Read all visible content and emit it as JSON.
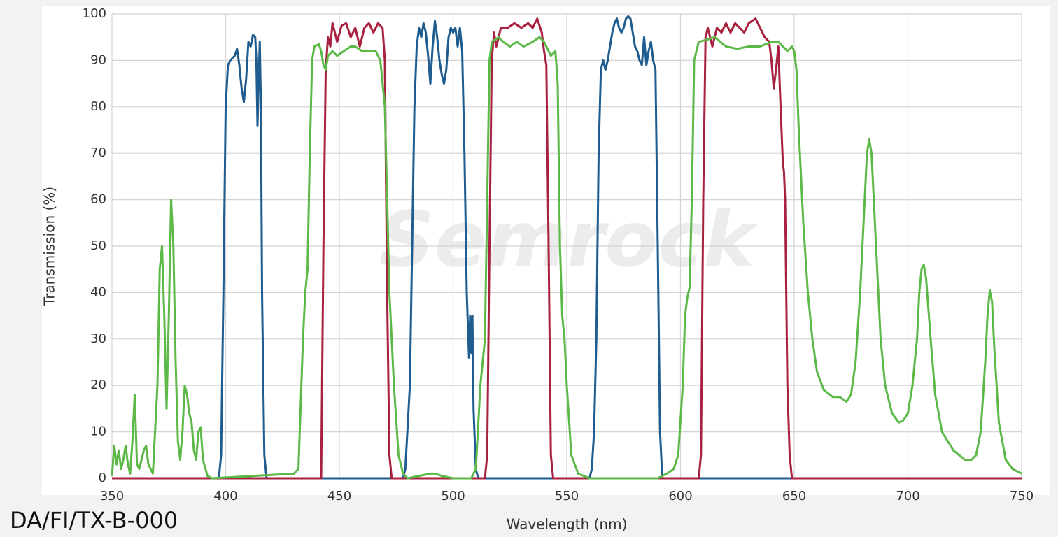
{
  "chart_data": {
    "type": "line",
    "xlabel": "Wavelength (nm)",
    "ylabel": "Transmission (%)",
    "annotation": "DA/FI/TX-B-000",
    "watermark": "Semrock",
    "xlim": [
      350,
      750
    ],
    "xticks": [
      350,
      400,
      450,
      500,
      550,
      600,
      650,
      700,
      750
    ],
    "ylim": [
      0,
      100
    ],
    "yticks": [
      0,
      10,
      20,
      30,
      40,
      50,
      60,
      70,
      80,
      90,
      100
    ],
    "grid": true,
    "series": [
      {
        "color": "#1f5c8f",
        "x": [
          350,
          397,
          398,
          399,
          400,
          401,
          402,
          404,
          405,
          406,
          407,
          408,
          409,
          410,
          411,
          412,
          413,
          413.5,
          414,
          414.5,
          415,
          415.5,
          416,
          417,
          418,
          478,
          479,
          481,
          482,
          483,
          484,
          485,
          486,
          487,
          488,
          489,
          490,
          491,
          492,
          493,
          494,
          495,
          496,
          497,
          498,
          499,
          500,
          501,
          502,
          503,
          504,
          505,
          506,
          507,
          507.5,
          508,
          508.5,
          509,
          510,
          511,
          560,
          561,
          562,
          563,
          564,
          565,
          566,
          567,
          568,
          569,
          570,
          571,
          572,
          573,
          574,
          575,
          576,
          577,
          578,
          579,
          580,
          581,
          582,
          583,
          584,
          585,
          586,
          587,
          588,
          589,
          590,
          591,
          592,
          750
        ],
        "values": [
          0,
          0,
          5,
          40,
          80,
          89,
          90,
          91,
          92.5,
          89,
          84,
          81,
          86,
          94,
          93,
          95.5,
          95,
          90,
          76,
          85,
          94,
          80,
          40,
          5,
          0,
          0,
          2,
          20,
          50,
          80,
          93,
          97,
          95,
          98,
          96,
          91,
          85,
          93,
          98.5,
          95,
          90,
          87,
          85,
          88,
          95,
          97,
          96,
          97,
          93,
          97,
          92,
          70,
          40,
          26,
          35,
          27,
          35,
          15,
          2,
          0,
          0,
          2,
          10,
          30,
          70,
          88,
          90,
          88,
          90,
          93,
          96,
          98,
          99,
          97,
          96,
          97,
          99,
          99.5,
          99,
          96,
          93,
          92,
          90,
          89,
          95,
          89,
          92,
          94,
          90,
          88,
          50,
          10,
          0,
          0
        ]
      },
      {
        "color": "#a8213f",
        "x": [
          350,
          442,
          443,
          444,
          445,
          446,
          447,
          449,
          451,
          453,
          455,
          457,
          459,
          461,
          463,
          465,
          467,
          469,
          470,
          471,
          472,
          473,
          514,
          515,
          516,
          517,
          518,
          519,
          521,
          524,
          527,
          530,
          533,
          535,
          537,
          539,
          540,
          541,
          542,
          543,
          544,
          608,
          609,
          610,
          611,
          612,
          614,
          616,
          618,
          620,
          622,
          624,
          626,
          628,
          630,
          633,
          635,
          637,
          639,
          640,
          641,
          642,
          643,
          644,
          645,
          645.5,
          646,
          647,
          648,
          649,
          750
        ],
        "values": [
          0,
          0,
          50,
          88,
          95,
          93,
          98,
          94,
          97.5,
          98,
          95,
          97,
          93,
          97,
          98,
          96,
          98,
          97,
          90,
          40,
          5,
          0,
          0,
          5,
          50,
          90,
          96,
          93,
          97,
          97,
          98,
          97,
          98,
          97,
          99,
          96,
          92,
          89,
          50,
          5,
          0,
          0,
          5,
          60,
          95,
          97,
          93,
          97,
          96,
          98,
          96,
          98,
          97,
          96,
          98,
          99,
          97,
          95,
          94,
          90,
          84,
          88,
          93,
          80,
          68,
          66,
          60,
          20,
          5,
          0,
          0
        ]
      },
      {
        "color": "#5cb947",
        "x": [
          350,
          351,
          352,
          353,
          354,
          355,
          356,
          357,
          358,
          359,
          360,
          361,
          362,
          364,
          365,
          366,
          368,
          370,
          371,
          372,
          373,
          374,
          375,
          376,
          377,
          378,
          379,
          380,
          381,
          382,
          383,
          384,
          385,
          386,
          387,
          388,
          389,
          390,
          392,
          394,
          430,
          432,
          434,
          435,
          436,
          437,
          438,
          439,
          441,
          442,
          443,
          444,
          445,
          447,
          449,
          452,
          455,
          457,
          460,
          463,
          466,
          468,
          470,
          472,
          474,
          476,
          478,
          480,
          490,
          492,
          495,
          500,
          508,
          510,
          512,
          514,
          515,
          516,
          517,
          520,
          522,
          525,
          528,
          531,
          535,
          538,
          540,
          542,
          543,
          545,
          546,
          547,
          548,
          549,
          550,
          552,
          555,
          560,
          590,
          594,
          597,
          599,
          601,
          602,
          603,
          604,
          605,
          606,
          608,
          612,
          615,
          620,
          625,
          630,
          635,
          640,
          643,
          645,
          647,
          649,
          650,
          651,
          652,
          654,
          656,
          658,
          660,
          663,
          667,
          670,
          673,
          675,
          677,
          679,
          681,
          682,
          683,
          684,
          686,
          688,
          690,
          693,
          696,
          698,
          700,
          702,
          704,
          705,
          706,
          707,
          708,
          710,
          712,
          715,
          720,
          725,
          728,
          730,
          732,
          734,
          735,
          736,
          737,
          738,
          740,
          743,
          746,
          750
        ],
        "values": [
          0.5,
          7,
          3,
          6,
          2,
          4,
          7,
          3,
          1,
          8,
          18,
          3,
          2,
          6,
          7,
          3,
          1,
          20,
          45,
          50,
          35,
          15,
          35,
          60,
          50,
          25,
          8,
          4,
          10,
          20,
          18,
          14,
          12,
          6,
          4,
          10,
          11,
          4,
          0.5,
          0,
          1,
          2,
          30,
          40,
          45,
          70,
          90,
          93,
          93.5,
          92,
          89,
          88,
          91,
          92,
          91,
          92,
          93,
          93,
          92,
          92,
          92,
          90,
          80,
          40,
          20,
          5,
          1,
          0,
          1,
          1,
          0.5,
          0,
          0,
          2,
          20,
          30,
          60,
          90,
          94,
          95,
          94,
          93,
          94,
          93,
          94,
          95,
          94,
          92,
          91,
          92,
          85,
          50,
          35,
          30,
          20,
          5,
          1,
          0,
          0,
          1,
          2,
          5,
          20,
          35,
          39,
          41,
          60,
          90,
          94,
          94.5,
          95,
          93,
          92.5,
          93,
          93,
          94,
          94,
          93,
          92,
          93,
          92,
          88,
          75,
          55,
          40,
          30,
          23,
          19,
          17.5,
          17.5,
          16.5,
          18,
          25,
          40,
          60,
          70,
          73,
          70,
          50,
          30,
          20,
          14,
          12,
          12.5,
          14,
          20,
          30,
          40,
          45,
          46,
          43,
          30,
          18,
          10,
          6,
          4,
          4,
          5,
          10,
          25,
          35,
          40.5,
          38,
          28,
          12,
          4,
          2,
          1
        ]
      }
    ]
  }
}
